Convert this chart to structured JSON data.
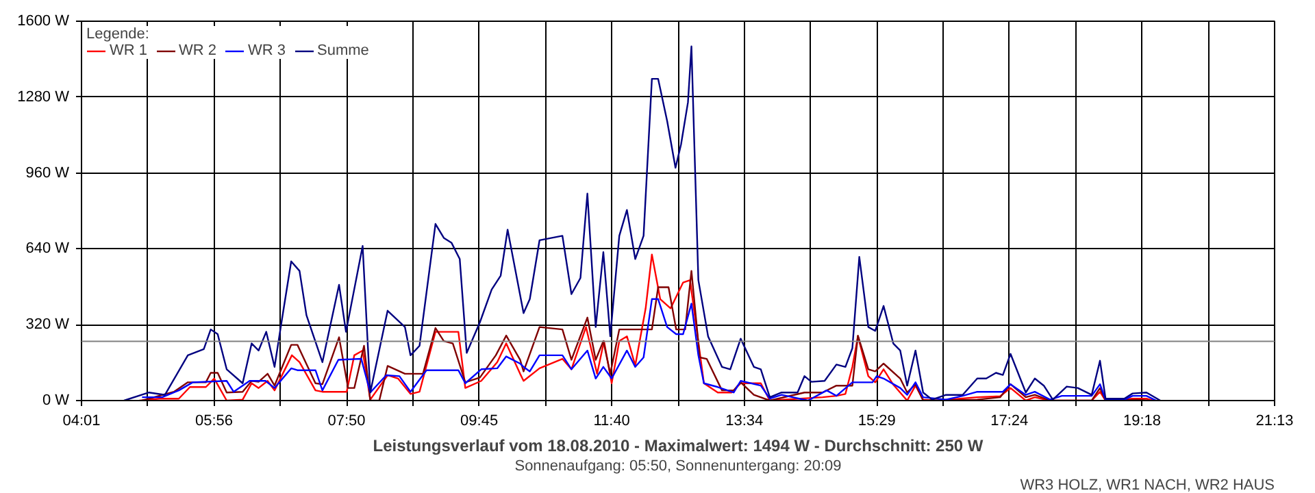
{
  "chart_data": {
    "type": "line",
    "title": "Leistungsverlauf vom 18.08.2010 - Maximalwert: 1494 W - Durchschnitt: 250 W",
    "subtitle": "Sonnenaufgang: 05:50, Sonnenuntergang: 20:09",
    "legend_title": "Legende:",
    "annotations": [
      "WR3 HOLZ, WR1 NACH, WR2 HAUS"
    ],
    "xlim": [
      4.017,
      21.217
    ],
    "ylim": [
      0,
      1600
    ],
    "xticks": [
      {
        "value": 4.017,
        "label": "04:01"
      },
      {
        "value": 4.972,
        "label": null
      },
      {
        "value": 5.928,
        "label": "05:56"
      },
      {
        "value": 6.883,
        "label": null
      },
      {
        "value": 7.839,
        "label": "07:50"
      },
      {
        "value": 8.794,
        "label": null
      },
      {
        "value": 9.75,
        "label": "09:45"
      },
      {
        "value": 10.706,
        "label": null
      },
      {
        "value": 11.661,
        "label": "11:40"
      },
      {
        "value": 12.617,
        "label": null
      },
      {
        "value": 13.572,
        "label": "13:34"
      },
      {
        "value": 14.528,
        "label": null
      },
      {
        "value": 15.483,
        "label": "15:29"
      },
      {
        "value": 16.439,
        "label": null
      },
      {
        "value": 17.394,
        "label": "17:24"
      },
      {
        "value": 18.35,
        "label": null
      },
      {
        "value": 19.306,
        "label": "19:18"
      },
      {
        "value": 20.261,
        "label": null
      },
      {
        "value": 21.217,
        "label": "21:13"
      }
    ],
    "yticks": [
      {
        "value": 0,
        "label": "0 W"
      },
      {
        "value": 320,
        "label": "320 W"
      },
      {
        "value": 640,
        "label": "640 W"
      },
      {
        "value": 960,
        "label": "960 W"
      },
      {
        "value": 1280,
        "label": "1280 W"
      },
      {
        "value": 1600,
        "label": "1600 W"
      }
    ],
    "grid": true,
    "legend": "top left",
    "ref_lines": [
      {
        "axis": "y",
        "value": 250,
        "color": "#808080"
      }
    ],
    "series": [
      {
        "name": "WR 1",
        "color": "#ff0000",
        "x": [
          4.85,
          5.14,
          5.42,
          5.58,
          5.81,
          5.93,
          6.11,
          6.34,
          6.47,
          6.57,
          6.7,
          6.8,
          7.05,
          7.16,
          7.39,
          7.49,
          7.84,
          7.95,
          8.07,
          8.18,
          8.43,
          8.58,
          8.76,
          8.89,
          9.12,
          9.45,
          9.55,
          9.78,
          10.01,
          10.14,
          10.34,
          10.39,
          10.62,
          10.95,
          11.08,
          11.29,
          11.45,
          11.55,
          11.66,
          11.77,
          11.88,
          12.0,
          12.15,
          12.24,
          12.36,
          12.51,
          12.69,
          12.79,
          12.89,
          12.99,
          13.19,
          13.39,
          13.52,
          13.81,
          13.94,
          14.7,
          14.9,
          15.03,
          15.13,
          15.21,
          15.36,
          15.46,
          15.58,
          15.72,
          15.92,
          16.04,
          16.15,
          16.35,
          16.93,
          17.26,
          17.41,
          17.63,
          17.76,
          17.98,
          18.58,
          18.7,
          18.78,
          19.17,
          19.37,
          19.47
        ],
        "values": [
          0,
          8,
          8,
          57,
          57,
          93,
          0,
          4,
          73,
          53,
          83,
          43,
          191,
          162,
          43,
          37,
          37,
          191,
          211,
          4,
          107,
          93,
          28,
          37,
          290,
          290,
          53,
          83,
          162,
          241,
          113,
          83,
          136,
          176,
          132,
          310,
          113,
          251,
          73,
          251,
          271,
          148,
          389,
          616,
          428,
          389,
          498,
          508,
          290,
          73,
          34,
          34,
          73,
          73,
          0,
          14,
          20,
          28,
          142,
          271,
          103,
          77,
          132,
          67,
          0,
          63,
          4,
          0,
          14,
          18,
          53,
          0,
          14,
          0,
          0,
          37,
          0,
          8,
          8,
          0
        ]
      },
      {
        "name": "WR 2",
        "color": "#800000",
        "x": [
          4.89,
          5.35,
          5.55,
          5.81,
          5.88,
          5.98,
          6.11,
          6.34,
          6.47,
          6.57,
          6.7,
          6.8,
          7.04,
          7.13,
          7.39,
          7.49,
          7.73,
          7.86,
          7.95,
          8.09,
          8.18,
          8.31,
          8.43,
          8.68,
          8.94,
          9.12,
          9.24,
          9.37,
          9.55,
          9.76,
          9.99,
          10.14,
          10.34,
          10.39,
          10.62,
          10.95,
          11.08,
          11.31,
          11.43,
          11.54,
          11.64,
          11.77,
          12.14,
          12.24,
          12.33,
          12.48,
          12.59,
          12.72,
          12.81,
          12.93,
          13.03,
          13.25,
          13.42,
          13.52,
          13.71,
          13.94,
          14.44,
          14.7,
          14.9,
          15.13,
          15.21,
          15.36,
          15.46,
          15.58,
          15.82,
          15.92,
          16.04,
          16.15,
          16.93,
          17.26,
          17.41,
          17.63,
          17.76,
          17.98,
          18.58,
          18.7,
          18.78,
          19.24,
          19.41
        ],
        "values": [
          0,
          37,
          77,
          77,
          117,
          117,
          34,
          37,
          83,
          79,
          113,
          63,
          235,
          235,
          73,
          69,
          267,
          53,
          53,
          231,
          0,
          0,
          146,
          113,
          113,
          306,
          251,
          241,
          77,
          97,
          191,
          274,
          172,
          123,
          310,
          300,
          172,
          350,
          172,
          251,
          113,
          300,
          300,
          300,
          478,
          478,
          300,
          300,
          547,
          182,
          176,
          43,
          43,
          77,
          24,
          0,
          34,
          34,
          63,
          63,
          274,
          132,
          123,
          156,
          93,
          34,
          69,
          0,
          4,
          14,
          69,
          14,
          24,
          0,
          0,
          53,
          0,
          4,
          0
        ]
      },
      {
        "name": "WR 3",
        "color": "#0000ff",
        "x": [
          4.89,
          5.18,
          5.42,
          5.62,
          6.11,
          6.21,
          6.44,
          6.67,
          6.8,
          7.04,
          7.13,
          7.39,
          7.49,
          7.72,
          8.05,
          8.18,
          8.41,
          8.6,
          8.76,
          8.99,
          9.45,
          9.55,
          9.78,
          10.01,
          10.14,
          10.34,
          10.39,
          10.48,
          10.62,
          10.95,
          11.08,
          11.31,
          11.43,
          11.54,
          11.66,
          11.88,
          12.0,
          12.12,
          12.24,
          12.33,
          12.46,
          12.59,
          12.69,
          12.81,
          12.91,
          12.99,
          13.19,
          13.42,
          13.52,
          13.81,
          13.94,
          14.11,
          14.49,
          14.76,
          14.9,
          15.13,
          15.42,
          15.48,
          15.58,
          15.82,
          15.92,
          16.04,
          16.15,
          16.48,
          16.72,
          16.93,
          17.3,
          17.41,
          17.63,
          17.76,
          17.98,
          18.15,
          18.58,
          18.7,
          18.78,
          19.05,
          19.17,
          19.37,
          19.51
        ],
        "values": [
          14,
          14,
          43,
          77,
          83,
          37,
          83,
          83,
          53,
          136,
          128,
          128,
          43,
          172,
          176,
          34,
          107,
          103,
          37,
          128,
          128,
          73,
          132,
          136,
          186,
          156,
          142,
          123,
          191,
          191,
          132,
          211,
          93,
          142,
          93,
          211,
          142,
          182,
          428,
          428,
          310,
          280,
          280,
          409,
          191,
          73,
          57,
          34,
          83,
          63,
          8,
          24,
          0,
          43,
          20,
          77,
          77,
          103,
          93,
          53,
          24,
          77,
          14,
          4,
          20,
          37,
          37,
          69,
          24,
          37,
          4,
          20,
          20,
          69,
          4,
          4,
          20,
          20,
          0
        ]
      },
      {
        "name": "Summe",
        "color": "#000080",
        "x": [
          4.63,
          4.99,
          5.22,
          5.55,
          5.78,
          5.88,
          5.98,
          6.11,
          6.34,
          6.47,
          6.57,
          6.68,
          6.8,
          6.9,
          7.04,
          7.16,
          7.26,
          7.49,
          7.73,
          7.83,
          8.07,
          8.18,
          8.43,
          8.68,
          8.76,
          8.89,
          9.12,
          9.24,
          9.35,
          9.47,
          9.57,
          9.76,
          9.93,
          10.06,
          10.16,
          10.39,
          10.48,
          10.62,
          10.95,
          11.08,
          11.21,
          11.31,
          11.43,
          11.54,
          11.64,
          11.77,
          11.88,
          12.0,
          12.12,
          12.24,
          12.33,
          12.46,
          12.58,
          12.66,
          12.76,
          12.81,
          12.91,
          13.05,
          13.25,
          13.37,
          13.52,
          13.71,
          13.81,
          13.94,
          14.11,
          14.34,
          14.44,
          14.54,
          14.73,
          14.9,
          15.03,
          15.13,
          15.23,
          15.36,
          15.46,
          15.58,
          15.72,
          15.82,
          15.92,
          16.04,
          16.15,
          16.28,
          16.48,
          16.72,
          16.93,
          17.06,
          17.2,
          17.3,
          17.41,
          17.63,
          17.76,
          17.89,
          18.02,
          18.22,
          18.38,
          18.58,
          18.7,
          18.78,
          19.05,
          19.17,
          19.37,
          19.57
        ],
        "values": [
          0,
          34,
          24,
          191,
          217,
          300,
          280,
          132,
          73,
          241,
          211,
          290,
          142,
          330,
          587,
          547,
          360,
          162,
          488,
          290,
          652,
          34,
          379,
          310,
          191,
          231,
          745,
          686,
          666,
          597,
          201,
          330,
          468,
          527,
          721,
          369,
          428,
          676,
          695,
          449,
          517,
          873,
          310,
          626,
          271,
          695,
          804,
          597,
          695,
          1357,
          1357,
          1179,
          982,
          1080,
          1258,
          1494,
          508,
          271,
          142,
          132,
          261,
          142,
          132,
          14,
          34,
          34,
          103,
          79,
          83,
          152,
          142,
          221,
          606,
          310,
          294,
          399,
          241,
          211,
          63,
          211,
          34,
          4,
          24,
          24,
          93,
          93,
          117,
          108,
          197,
          34,
          93,
          63,
          4,
          59,
          53,
          24,
          168,
          8,
          8,
          30,
          34,
          0
        ]
      }
    ]
  }
}
